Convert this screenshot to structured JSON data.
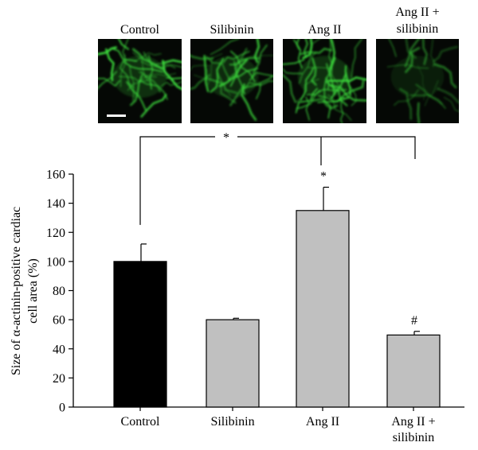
{
  "micrographs": {
    "labels": [
      [
        "Control"
      ],
      [
        "Silibinin"
      ],
      [
        "Ang II"
      ],
      [
        "Ang II +",
        "silibinin"
      ]
    ],
    "stain_color": "#3cdc3c"
  },
  "chart_data": {
    "type": "bar",
    "categories": [
      [
        "Control"
      ],
      [
        "Silibinin"
      ],
      [
        "Ang II"
      ],
      [
        "Ang II +",
        "silibinin"
      ]
    ],
    "values": [
      100,
      60,
      135,
      49.5
    ],
    "errors": [
      12,
      1,
      16,
      2.5
    ],
    "bar_colors": [
      "#000000",
      "#c0c0c0",
      "#c0c0c0",
      "#c0c0c0"
    ],
    "ylabel_lines": [
      "Size of α-actinin-positive cardiac",
      "cell area (%)"
    ],
    "ylim": [
      0,
      160
    ],
    "yticks": [
      0,
      20,
      40,
      60,
      80,
      100,
      120,
      140,
      160
    ],
    "significance": {
      "bracket_mark": "*",
      "bar_marks": [
        "",
        "",
        "*",
        "#"
      ]
    }
  }
}
